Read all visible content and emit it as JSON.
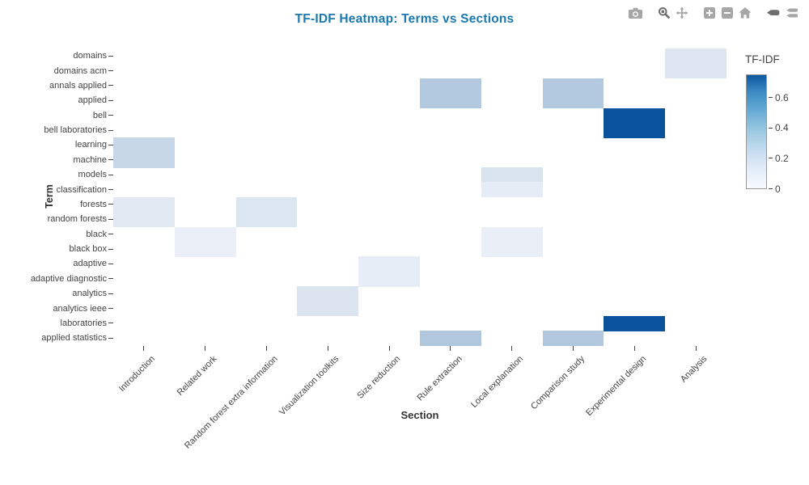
{
  "title": "TF-IDF Heatmap: Terms vs Sections",
  "title_color": "#1a78b0",
  "modebar": {
    "icons": [
      {
        "name": "camera",
        "title": "Download plot as png",
        "group": 0,
        "active": false
      },
      {
        "name": "zoom",
        "title": "Zoom",
        "group": 1,
        "active": true
      },
      {
        "name": "pan",
        "title": "Pan",
        "group": 1,
        "active": false
      },
      {
        "name": "zoom-in",
        "title": "Zoom in",
        "group": 2,
        "active": false
      },
      {
        "name": "zoom-out",
        "title": "Zoom out",
        "group": 2,
        "active": false
      },
      {
        "name": "home",
        "title": "Reset axes",
        "group": 2,
        "active": false
      },
      {
        "name": "hover-closest",
        "title": "Show closest data on hover",
        "group": 3,
        "active": true
      },
      {
        "name": "hover-compare",
        "title": "Compare data on hover",
        "group": 3,
        "active": false
      }
    ]
  },
  "chart_data": {
    "type": "heatmap",
    "title": "TF-IDF Heatmap: Terms vs Sections",
    "xlabel": "Section",
    "ylabel": "Term",
    "legend_position": "right-colorbar",
    "grid": false,
    "empty_color": "#ffffff",
    "columns": [
      "Introduction",
      "Related work",
      "Random forest extra information",
      "Visualization toolkits",
      "Size reduction",
      "Rule extraction",
      "Local explanation",
      "Comparison study",
      "Experimental design",
      "Analysis"
    ],
    "rows": [
      "domains",
      "domains acm",
      "annals applied",
      "applied",
      "bell",
      "bell laboratories",
      "learning",
      "machine",
      "models",
      "classification",
      "forests",
      "random forests",
      "black",
      "black box",
      "adaptive",
      "adaptive diagnostic",
      "analytics",
      "analytics ieee",
      "laboratories",
      "applied statistics"
    ],
    "cells": [
      {
        "r": 0,
        "c": 9,
        "term": "domains",
        "section": "Analysis",
        "value": 0.12,
        "color": "#dde6f0"
      },
      {
        "r": 1,
        "c": 9,
        "term": "domains acm",
        "section": "Analysis",
        "value": 0.12,
        "color": "#dde6f0"
      },
      {
        "r": 2,
        "c": 5,
        "term": "annals applied",
        "section": "Rule extraction",
        "value": 0.27,
        "color": "#b2c9e0"
      },
      {
        "r": 2,
        "c": 7,
        "term": "annals applied",
        "section": "Comparison study",
        "value": 0.27,
        "color": "#b2c9e0"
      },
      {
        "r": 3,
        "c": 5,
        "term": "applied",
        "section": "Rule extraction",
        "value": 0.27,
        "color": "#b2c9e0"
      },
      {
        "r": 3,
        "c": 7,
        "term": "applied",
        "section": "Comparison study",
        "value": 0.27,
        "color": "#b2c9e0"
      },
      {
        "r": 4,
        "c": 8,
        "term": "bell",
        "section": "Experimental design",
        "value": 0.72,
        "color": "#0a529c"
      },
      {
        "r": 5,
        "c": 8,
        "term": "bell laboratories",
        "section": "Experimental design",
        "value": 0.72,
        "color": "#0a529c"
      },
      {
        "r": 6,
        "c": 0,
        "term": "learning",
        "section": "Introduction",
        "value": 0.21,
        "color": "#c8d7e8"
      },
      {
        "r": 7,
        "c": 0,
        "term": "machine",
        "section": "Introduction",
        "value": 0.21,
        "color": "#c8d7e8"
      },
      {
        "r": 8,
        "c": 6,
        "term": "models",
        "section": "Local explanation",
        "value": 0.14,
        "color": "#d9e3ee"
      },
      {
        "r": 9,
        "c": 6,
        "term": "classification",
        "section": "Local explanation",
        "value": 0.08,
        "color": "#e5ecf5"
      },
      {
        "r": 10,
        "c": 0,
        "term": "forests",
        "section": "Introduction",
        "value": 0.1,
        "color": "#e2e9f3"
      },
      {
        "r": 10,
        "c": 2,
        "term": "forests",
        "section": "Random forest extra information",
        "value": 0.13,
        "color": "#dce6f0"
      },
      {
        "r": 11,
        "c": 0,
        "term": "random forests",
        "section": "Introduction",
        "value": 0.1,
        "color": "#e2e9f3"
      },
      {
        "r": 11,
        "c": 2,
        "term": "random forests",
        "section": "Random forest extra information",
        "value": 0.13,
        "color": "#dce6f0"
      },
      {
        "r": 12,
        "c": 1,
        "term": "black",
        "section": "Related work",
        "value": 0.06,
        "color": "#eaeff8"
      },
      {
        "r": 12,
        "c": 6,
        "term": "black",
        "section": "Local explanation",
        "value": 0.06,
        "color": "#eaeff7"
      },
      {
        "r": 13,
        "c": 1,
        "term": "black box",
        "section": "Related work",
        "value": 0.06,
        "color": "#eaeff8"
      },
      {
        "r": 13,
        "c": 6,
        "term": "black box",
        "section": "Local explanation",
        "value": 0.06,
        "color": "#eaeff7"
      },
      {
        "r": 14,
        "c": 4,
        "term": "adaptive",
        "section": "Size reduction",
        "value": 0.07,
        "color": "#e7edf6"
      },
      {
        "r": 15,
        "c": 4,
        "term": "adaptive diagnostic",
        "section": "Size reduction",
        "value": 0.07,
        "color": "#e7edf6"
      },
      {
        "r": 16,
        "c": 3,
        "term": "analytics",
        "section": "Visualization toolkits",
        "value": 0.12,
        "color": "#dce4f0"
      },
      {
        "r": 17,
        "c": 3,
        "term": "analytics ieee",
        "section": "Visualization toolkits",
        "value": 0.12,
        "color": "#dce4f0"
      },
      {
        "r": 18,
        "c": 8,
        "term": "laboratories",
        "section": "Experimental design",
        "value": 0.72,
        "color": "#0a529c"
      },
      {
        "r": 19,
        "c": 5,
        "term": "applied statistics",
        "section": "Rule extraction",
        "value": 0.28,
        "color": "#b0c7de"
      },
      {
        "r": 19,
        "c": 7,
        "term": "applied statistics",
        "section": "Comparison study",
        "value": 0.28,
        "color": "#b0c7de"
      }
    ],
    "colorbar": {
      "title": "TF-IDF",
      "ticks": [
        0,
        0.2,
        0.4,
        0.6
      ],
      "tick_labels": [
        "0",
        "0.2",
        "0.4",
        "0.6"
      ],
      "zmin": 0,
      "zmax": 0.75,
      "scale_bottom": "#f7fbff",
      "scale_top": "#0d58a1"
    }
  }
}
